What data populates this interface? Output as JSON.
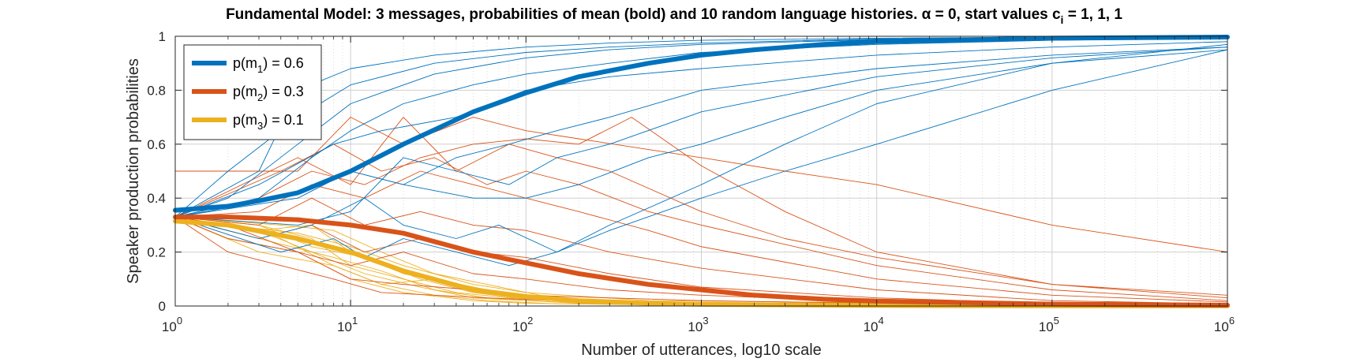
{
  "chart_data": {
    "type": "line",
    "title": "Fundamental Model:  3 messages, probabilities of mean (bold) and 10 random language histories.  α = 0, start values c",
    "title_sub": "i",
    "title_end": " = 1, 1, 1",
    "xlabel": "Number of utterances, log10 scale",
    "ylabel": "Speaker production probabilities",
    "xscale": "log10",
    "xlim": [
      1,
      1000000
    ],
    "ylim": [
      0,
      1
    ],
    "grid": true,
    "minor_grid": true,
    "legend_position": "top-left",
    "x_ticks": [
      {
        "base": "10",
        "exp": "0",
        "value": 1
      },
      {
        "base": "10",
        "exp": "1",
        "value": 10
      },
      {
        "base": "10",
        "exp": "2",
        "value": 100
      },
      {
        "base": "10",
        "exp": "3",
        "value": 1000
      },
      {
        "base": "10",
        "exp": "4",
        "value": 10000
      },
      {
        "base": "10",
        "exp": "5",
        "value": 100000
      },
      {
        "base": "10",
        "exp": "6",
        "value": 1000000
      }
    ],
    "y_ticks": [
      "0",
      "0.2",
      "0.4",
      "0.6",
      "0.8",
      "1"
    ],
    "y_tick_values": [
      0,
      0.2,
      0.4,
      0.6,
      0.8,
      1
    ],
    "series": [
      {
        "name": "p(m1) = 0.6",
        "label_main": "p(m",
        "label_sub": "1",
        "label_end": ") = 0.6",
        "color": "#0072BD",
        "kind": "mean",
        "x": [
          1,
          2,
          3,
          5,
          10,
          20,
          50,
          100,
          200,
          500,
          1000,
          2000,
          5000,
          10000,
          100000,
          1000000
        ],
        "values": [
          0.355,
          0.37,
          0.39,
          0.42,
          0.5,
          0.6,
          0.72,
          0.79,
          0.85,
          0.9,
          0.93,
          0.95,
          0.97,
          0.98,
          0.993,
          0.997
        ]
      },
      {
        "name": "p(m2) = 0.3",
        "label_main": "p(m",
        "label_sub": "2",
        "label_end": ") = 0.3",
        "color": "#D95319",
        "kind": "mean",
        "x": [
          1,
          2,
          5,
          10,
          20,
          50,
          100,
          200,
          500,
          1000,
          2000,
          5000,
          10000,
          100000,
          1000000
        ],
        "values": [
          0.33,
          0.33,
          0.32,
          0.3,
          0.27,
          0.2,
          0.16,
          0.12,
          0.08,
          0.06,
          0.04,
          0.025,
          0.018,
          0.007,
          0.003
        ]
      },
      {
        "name": "p(m3) = 0.1",
        "label_main": "p(m",
        "label_sub": "3",
        "label_end": ") = 0.1",
        "color": "#EDB120",
        "kind": "mean",
        "x": [
          1,
          2,
          5,
          10,
          20,
          50,
          100,
          200,
          500,
          1000,
          10000,
          100000,
          1000000
        ],
        "values": [
          0.315,
          0.3,
          0.25,
          0.2,
          0.13,
          0.06,
          0.035,
          0.02,
          0.01,
          0.006,
          0.002,
          0.001,
          0.0005
        ]
      }
    ],
    "histories": {
      "m1": [
        {
          "x": [
            1,
            3,
            5,
            10,
            30,
            100,
            300,
            1000,
            10000,
            100000,
            1000000
          ],
          "values": [
            0.33,
            0.5,
            0.8,
            0.88,
            0.93,
            0.96,
            0.975,
            0.985,
            0.993,
            0.997,
            0.999
          ]
        },
        {
          "x": [
            1,
            2,
            5,
            10,
            30,
            100,
            300,
            1000,
            10000,
            100000,
            1000000
          ],
          "values": [
            0.33,
            0.5,
            0.7,
            0.82,
            0.9,
            0.94,
            0.96,
            0.975,
            0.99,
            0.996,
            0.998
          ]
        },
        {
          "x": [
            1,
            2,
            5,
            10,
            30,
            100,
            300,
            1000,
            10000,
            100000,
            1000000
          ],
          "values": [
            0.33,
            0.4,
            0.6,
            0.75,
            0.86,
            0.92,
            0.95,
            0.97,
            0.988,
            0.995,
            0.998
          ]
        },
        {
          "x": [
            1,
            3,
            6,
            10,
            20,
            50,
            100,
            300,
            1000,
            10000,
            100000,
            1000000
          ],
          "values": [
            0.33,
            0.4,
            0.55,
            0.65,
            0.75,
            0.82,
            0.86,
            0.9,
            0.94,
            0.97,
            0.985,
            0.993
          ]
        },
        {
          "x": [
            1,
            3,
            8,
            15,
            40,
            100,
            300,
            1000,
            10000,
            100000,
            1000000
          ],
          "values": [
            0.33,
            0.45,
            0.6,
            0.65,
            0.7,
            0.8,
            0.85,
            0.88,
            0.93,
            0.96,
            0.98
          ]
        },
        {
          "x": [
            1,
            4,
            10,
            20,
            40,
            80,
            150,
            300,
            1000,
            10000,
            100000,
            1000000
          ],
          "values": [
            0.33,
            0.4,
            0.5,
            0.45,
            0.55,
            0.6,
            0.65,
            0.7,
            0.8,
            0.88,
            0.93,
            0.96
          ]
        },
        {
          "x": [
            1,
            5,
            10,
            20,
            40,
            80,
            150,
            300,
            1000,
            10000,
            100000,
            1000000
          ],
          "values": [
            0.33,
            0.3,
            0.35,
            0.55,
            0.5,
            0.45,
            0.55,
            0.6,
            0.72,
            0.85,
            0.92,
            0.96
          ]
        },
        {
          "x": [
            1,
            5,
            10,
            20,
            50,
            100,
            200,
            500,
            1000,
            3000,
            10000,
            100000,
            1000000
          ],
          "values": [
            0.33,
            0.4,
            0.5,
            0.45,
            0.4,
            0.4,
            0.45,
            0.55,
            0.6,
            0.7,
            0.8,
            0.9,
            0.95
          ]
        },
        {
          "x": [
            1,
            3,
            6,
            12,
            20,
            40,
            70,
            150,
            300,
            1000,
            3000,
            10000,
            100000,
            1000000
          ],
          "values": [
            0.33,
            0.25,
            0.3,
            0.4,
            0.3,
            0.25,
            0.3,
            0.2,
            0.3,
            0.45,
            0.6,
            0.75,
            0.9,
            0.97
          ]
        },
        {
          "x": [
            1,
            4,
            8,
            12,
            20,
            40,
            80,
            150,
            300,
            1000,
            3000,
            10000,
            100000,
            1000000
          ],
          "values": [
            0.33,
            0.2,
            0.25,
            0.18,
            0.25,
            0.2,
            0.15,
            0.2,
            0.28,
            0.4,
            0.5,
            0.6,
            0.8,
            0.95
          ]
        }
      ],
      "m2": [
        {
          "x": [
            1,
            5,
            10,
            20,
            50,
            100,
            200,
            500,
            1000,
            3000,
            10000,
            100000,
            1000000
          ],
          "values": [
            0.5,
            0.5,
            0.7,
            0.6,
            0.7,
            0.65,
            0.62,
            0.58,
            0.55,
            0.5,
            0.45,
            0.3,
            0.2
          ]
        },
        {
          "x": [
            1,
            5,
            10,
            20,
            40,
            80,
            150,
            300,
            1000,
            3000,
            10000,
            100000,
            1000000
          ],
          "values": [
            0.33,
            0.55,
            0.45,
            0.7,
            0.5,
            0.6,
            0.55,
            0.5,
            0.35,
            0.25,
            0.18,
            0.08,
            0.04
          ]
        },
        {
          "x": [
            1,
            4,
            8,
            15,
            30,
            60,
            100,
            200,
            500,
            1000,
            10000,
            100000,
            1000000
          ],
          "values": [
            0.33,
            0.5,
            0.6,
            0.5,
            0.55,
            0.45,
            0.5,
            0.45,
            0.35,
            0.3,
            0.15,
            0.06,
            0.02
          ]
        },
        {
          "x": [
            1,
            3,
            6,
            12,
            25,
            50,
            100,
            200,
            500,
            1000,
            10000,
            100000,
            1000000
          ],
          "values": [
            0.33,
            0.35,
            0.45,
            0.4,
            0.5,
            0.45,
            0.4,
            0.35,
            0.28,
            0.22,
            0.1,
            0.04,
            0.015
          ]
        },
        {
          "x": [
            1,
            3,
            6,
            12,
            25,
            50,
            100,
            300,
            1000,
            10000,
            100000,
            1000000
          ],
          "values": [
            0.33,
            0.3,
            0.4,
            0.3,
            0.35,
            0.3,
            0.28,
            0.2,
            0.14,
            0.06,
            0.02,
            0.008
          ]
        },
        {
          "x": [
            1,
            3,
            6,
            12,
            25,
            50,
            100,
            300,
            1000,
            10000,
            100000,
            1000000
          ],
          "values": [
            0.33,
            0.25,
            0.3,
            0.2,
            0.25,
            0.2,
            0.18,
            0.12,
            0.07,
            0.03,
            0.01,
            0.005
          ]
        },
        {
          "x": [
            1,
            2,
            5,
            10,
            20,
            50,
            100,
            300,
            1000,
            10000,
            100000,
            1000000
          ],
          "values": [
            0.33,
            0.3,
            0.2,
            0.15,
            0.2,
            0.12,
            0.1,
            0.06,
            0.04,
            0.015,
            0.006,
            0.003
          ]
        },
        {
          "x": [
            1,
            2,
            5,
            10,
            20,
            50,
            100,
            300,
            1000,
            10000,
            100000,
            1000000
          ],
          "values": [
            0.33,
            0.25,
            0.2,
            0.1,
            0.08,
            0.06,
            0.04,
            0.03,
            0.02,
            0.01,
            0.004,
            0.002
          ]
        },
        {
          "x": [
            1,
            2,
            4,
            8,
            15,
            30,
            60,
            150,
            500,
            10000,
            100000,
            1000000
          ],
          "values": [
            0.33,
            0.2,
            0.15,
            0.1,
            0.05,
            0.04,
            0.03,
            0.02,
            0.01,
            0.005,
            0.002,
            0.001
          ]
        },
        {
          "x": [
            1,
            3,
            6,
            12,
            25,
            50,
            100,
            200,
            400,
            1000,
            3000,
            10000,
            100000,
            1000000
          ],
          "values": [
            0.33,
            0.4,
            0.5,
            0.45,
            0.55,
            0.6,
            0.62,
            0.6,
            0.7,
            0.52,
            0.35,
            0.2,
            0.08,
            0.03
          ]
        }
      ],
      "m3": [
        {
          "x": [
            1,
            3,
            6,
            10,
            20,
            40,
            80,
            200,
            1000,
            1000000
          ],
          "values": [
            0.33,
            0.3,
            0.25,
            0.15,
            0.1,
            0.05,
            0.03,
            0.015,
            0.005,
            0.0005
          ]
        },
        {
          "x": [
            1,
            3,
            6,
            10,
            20,
            40,
            80,
            200,
            1000,
            1000000
          ],
          "values": [
            0.33,
            0.28,
            0.3,
            0.2,
            0.12,
            0.08,
            0.04,
            0.02,
            0.006,
            0.0005
          ]
        },
        {
          "x": [
            1,
            2,
            5,
            10,
            20,
            50,
            100,
            500,
            1000000
          ],
          "values": [
            0.33,
            0.25,
            0.2,
            0.1,
            0.05,
            0.02,
            0.01,
            0.004,
            0.0003
          ]
        },
        {
          "x": [
            1,
            2,
            5,
            10,
            20,
            50,
            100,
            500,
            1000000
          ],
          "values": [
            0.33,
            0.3,
            0.27,
            0.22,
            0.15,
            0.08,
            0.05,
            0.02,
            0.001
          ]
        },
        {
          "x": [
            1,
            3,
            8,
            15,
            30,
            60,
            100,
            300,
            1000,
            1000000
          ],
          "values": [
            0.33,
            0.2,
            0.15,
            0.08,
            0.1,
            0.06,
            0.03,
            0.015,
            0.005,
            0.0004
          ]
        },
        {
          "x": [
            1,
            3,
            8,
            15,
            30,
            60,
            100,
            300,
            1000000
          ],
          "values": [
            0.33,
            0.25,
            0.18,
            0.13,
            0.06,
            0.03,
            0.02,
            0.008,
            0.0004
          ]
        },
        {
          "x": [
            1,
            3,
            6,
            12,
            25,
            50,
            100,
            300,
            1000000
          ],
          "values": [
            0.33,
            0.3,
            0.22,
            0.18,
            0.1,
            0.05,
            0.025,
            0.01,
            0.0005
          ]
        },
        {
          "x": [
            1,
            2,
            4,
            8,
            15,
            30,
            60,
            150,
            1000000
          ],
          "values": [
            0.33,
            0.3,
            0.25,
            0.15,
            0.08,
            0.04,
            0.02,
            0.008,
            0.0003
          ]
        },
        {
          "x": [
            1,
            3,
            6,
            12,
            25,
            50,
            100,
            200,
            1000000
          ],
          "values": [
            0.33,
            0.28,
            0.2,
            0.12,
            0.07,
            0.03,
            0.02,
            0.01,
            0.0005
          ]
        },
        {
          "x": [
            1,
            4,
            8,
            15,
            30,
            60,
            120,
            300,
            1000000
          ],
          "values": [
            0.33,
            0.3,
            0.28,
            0.2,
            0.12,
            0.08,
            0.04,
            0.015,
            0.0005
          ]
        }
      ]
    }
  }
}
